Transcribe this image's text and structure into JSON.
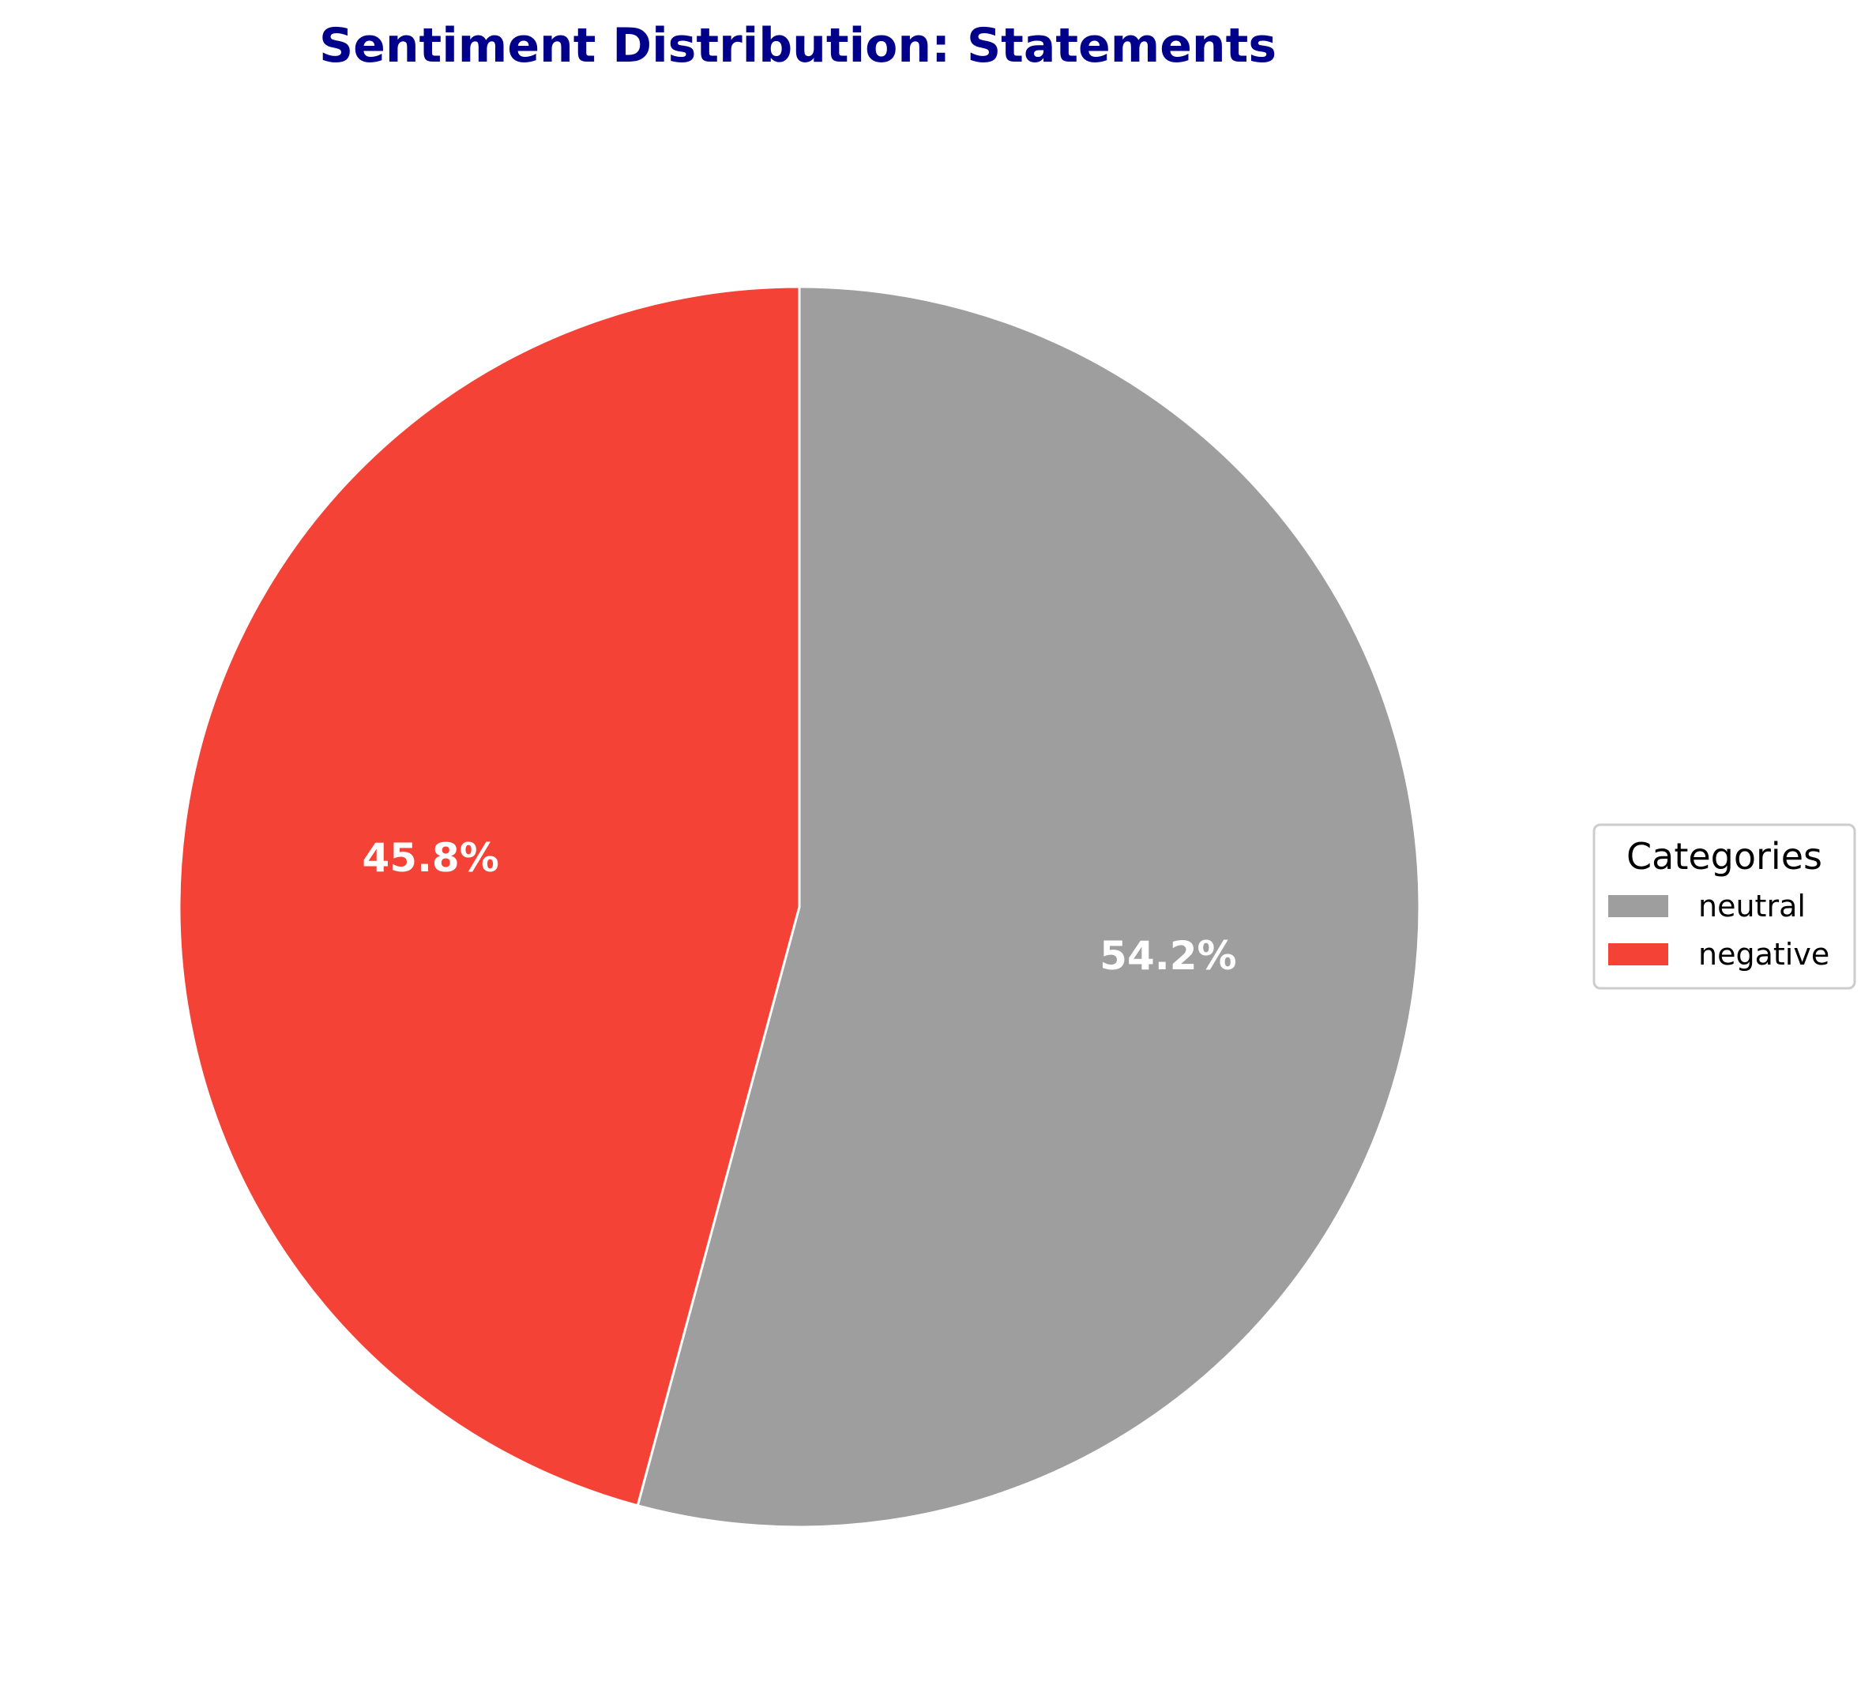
{
  "chart_data": {
    "type": "pie",
    "title": "Sentiment Distribution: Statements",
    "title_color": "#00008B",
    "start_angle": 90,
    "direction": "clockwise",
    "slices": [
      {
        "label": "neutral",
        "value": 54.2,
        "display": "54.2%",
        "color": "#9E9E9E"
      },
      {
        "label": "negative",
        "value": 45.8,
        "display": "45.8%",
        "color": "#F44336"
      }
    ],
    "edge_color": "#FFFFFF",
    "legend": {
      "title": "Categories",
      "placement": "center-right",
      "entries": [
        "neutral",
        "negative"
      ]
    }
  }
}
